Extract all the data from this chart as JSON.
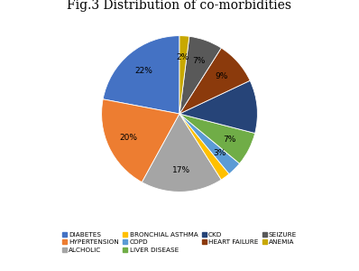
{
  "title": "Fig.3 Distribution of co-morbidities",
  "labels": [
    "DIABETES",
    "HYPERTENSION",
    "ALCHOLIC",
    "BRONCHIAL ASTHMA",
    "COPD",
    "LIVER DISEASE",
    "CKD",
    "HEART FAILURE",
    "SEIZURE",
    "ANEMIA"
  ],
  "sizes": [
    22,
    20,
    17,
    2,
    3,
    7,
    11,
    9,
    7,
    2
  ],
  "colors": [
    "#4472C4",
    "#ED7D31",
    "#A5A5A5",
    "#FFC000",
    "#5B9BD5",
    "#70AD47",
    "#264478",
    "#8B3A0C",
    "#595959",
    "#C8A800"
  ],
  "pct_show": [
    true,
    true,
    true,
    false,
    true,
    true,
    false,
    true,
    true,
    true
  ],
  "startangle": 90,
  "title_fontsize": 10,
  "legend_fontsize": 5.5
}
